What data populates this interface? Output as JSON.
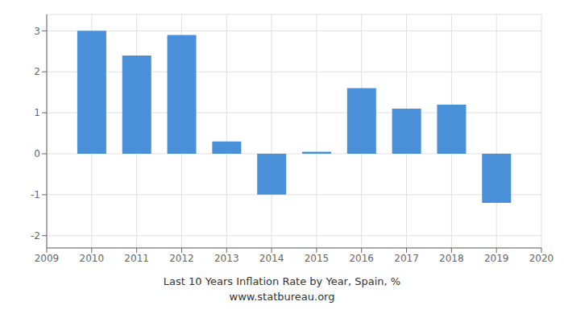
{
  "chart_data": {
    "type": "bar",
    "title": "Last 10 Years Inflation Rate by Year, Spain, %",
    "subtitle": "www.statbureau.org",
    "x": [
      2010,
      2011,
      2012,
      2013,
      2014,
      2015,
      2016,
      2017,
      2018,
      2019
    ],
    "values": [
      3.0,
      2.4,
      2.9,
      0.3,
      -1.0,
      0.05,
      1.6,
      1.1,
      1.2,
      -1.2
    ],
    "color": "#4a90d9",
    "xlim": [
      2009,
      2020
    ],
    "xticks": [
      2009,
      2010,
      2011,
      2012,
      2013,
      2014,
      2015,
      2016,
      2017,
      2018,
      2019,
      2020
    ],
    "ylim": [
      -2.3,
      3.4
    ],
    "yticks": [
      -2,
      -1,
      0,
      1,
      2,
      3
    ],
    "grid": true
  }
}
